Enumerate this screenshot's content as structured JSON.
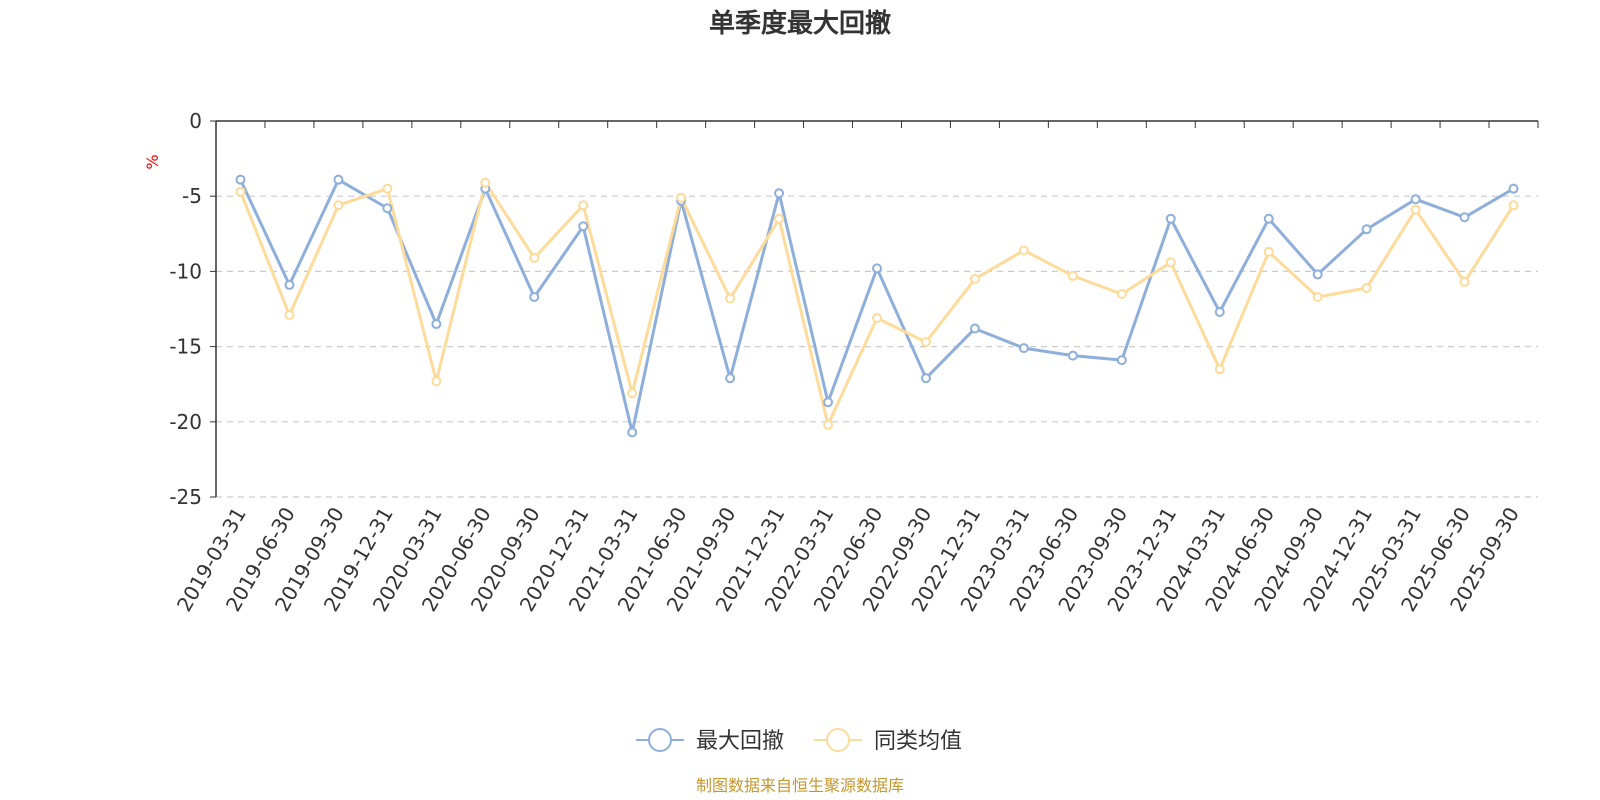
{
  "chart_data": {
    "type": "line",
    "title": "单季度最大回撤",
    "ylabel": "%",
    "ylim": [
      -25,
      0
    ],
    "yticks": [
      0,
      -5,
      -10,
      -15,
      -20,
      -25
    ],
    "grid": true,
    "legend_position": "bottom-center",
    "categories": [
      "2019-03-31",
      "2019-06-30",
      "2019-09-30",
      "2019-12-31",
      "2020-03-31",
      "2020-06-30",
      "2020-09-30",
      "2020-12-31",
      "2021-03-31",
      "2021-06-30",
      "2021-09-30",
      "2021-12-31",
      "2022-03-31",
      "2022-06-30",
      "2022-09-30",
      "2022-12-31",
      "2023-03-31",
      "2023-06-30",
      "2023-09-30",
      "2023-12-31",
      "2024-03-31",
      "2024-06-30",
      "2024-09-30",
      "2024-12-31",
      "2025-03-31",
      "2025-06-30",
      "2025-09-30"
    ],
    "series": [
      {
        "name": "最大回撤",
        "color": "#8eaedb",
        "values": [
          -3.9,
          -10.9,
          -3.9,
          -5.8,
          -13.5,
          -4.5,
          -11.7,
          -7.0,
          -20.7,
          -5.3,
          -17.1,
          -4.8,
          -18.7,
          -9.8,
          -17.1,
          -13.8,
          -15.1,
          -15.6,
          -15.9,
          -6.5,
          -12.7,
          -6.5,
          -10.2,
          -7.2,
          -5.2,
          -6.4,
          -4.5
        ]
      },
      {
        "name": "同类均值",
        "color": "#fddb9a",
        "values": [
          -4.7,
          -12.9,
          -5.6,
          -4.5,
          -17.3,
          -4.1,
          -9.1,
          -5.6,
          -18.1,
          -5.1,
          -11.8,
          -6.5,
          -20.2,
          -13.1,
          -14.7,
          -10.5,
          -8.6,
          -10.3,
          -11.5,
          -9.4,
          -16.5,
          -8.7,
          -11.7,
          -11.1,
          -5.9,
          -10.7,
          -5.6
        ]
      }
    ]
  },
  "source_text": "制图数据来自恒生聚源数据库",
  "colors": {
    "axis": "#333333",
    "grid": "#cccccc",
    "unit": "#ff0000",
    "source": "#c6962f"
  }
}
